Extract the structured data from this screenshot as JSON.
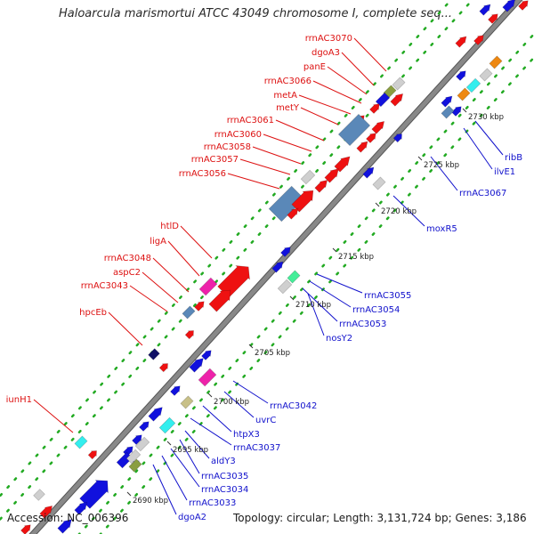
{
  "title": "Haloarcula marismortui ATCC 43049 chromosome I, complete seq...",
  "footer": {
    "accession": "Accession: NC_006396",
    "summary": "Topology: circular; Length: 3,131,724 bp; Genes: 3,186"
  },
  "scale_unit": "kbp",
  "ticks": [
    "2690 kbp",
    "2695 kbp",
    "2700 kbp",
    "2705 kbp",
    "2710 kbp",
    "2715 kbp",
    "2720 kbp",
    "2725 kbp",
    "2730 kbp"
  ],
  "colors": {
    "forward_label": "#dd1111",
    "reverse_label": "#1111cc",
    "backbone": "#888888",
    "dots": "#22aa22",
    "red": "#ee1111",
    "blue": "#1111dd",
    "steel": "#5a88b8",
    "magenta": "#ee22aa",
    "cyan": "#33eeee",
    "gray": "#cfcfcf",
    "olive": "#8a9e40",
    "khaki": "#c8c088",
    "navy": "#111166",
    "green": "#44ee99",
    "orange": "#ee8811"
  },
  "forward_labels": [
    "rrnAC3070",
    "dgoA3",
    "panE",
    "rrnAC3066",
    "metA",
    "metY",
    "rrnAC3061",
    "rrnAC3060",
    "rrnAC3058",
    "rrnAC3057",
    "rrnAC3056",
    "htlD",
    "ligA",
    "rrnAC3048",
    "aspC2",
    "rrnAC3043",
    "hpcEb",
    "iunH1"
  ],
  "reverse_labels": [
    "ribB",
    "ilvE1",
    "rrnAC3067",
    "moxR5",
    "rrnAC3055",
    "rrnAC3054",
    "rrnAC3053",
    "nosY2",
    "rrnAC3042",
    "uvrC",
    "htpX3",
    "rrnAC3037",
    "aldY3",
    "rrnAC3035",
    "rrnAC3034",
    "rrnAC3033",
    "dgoA2"
  ]
}
